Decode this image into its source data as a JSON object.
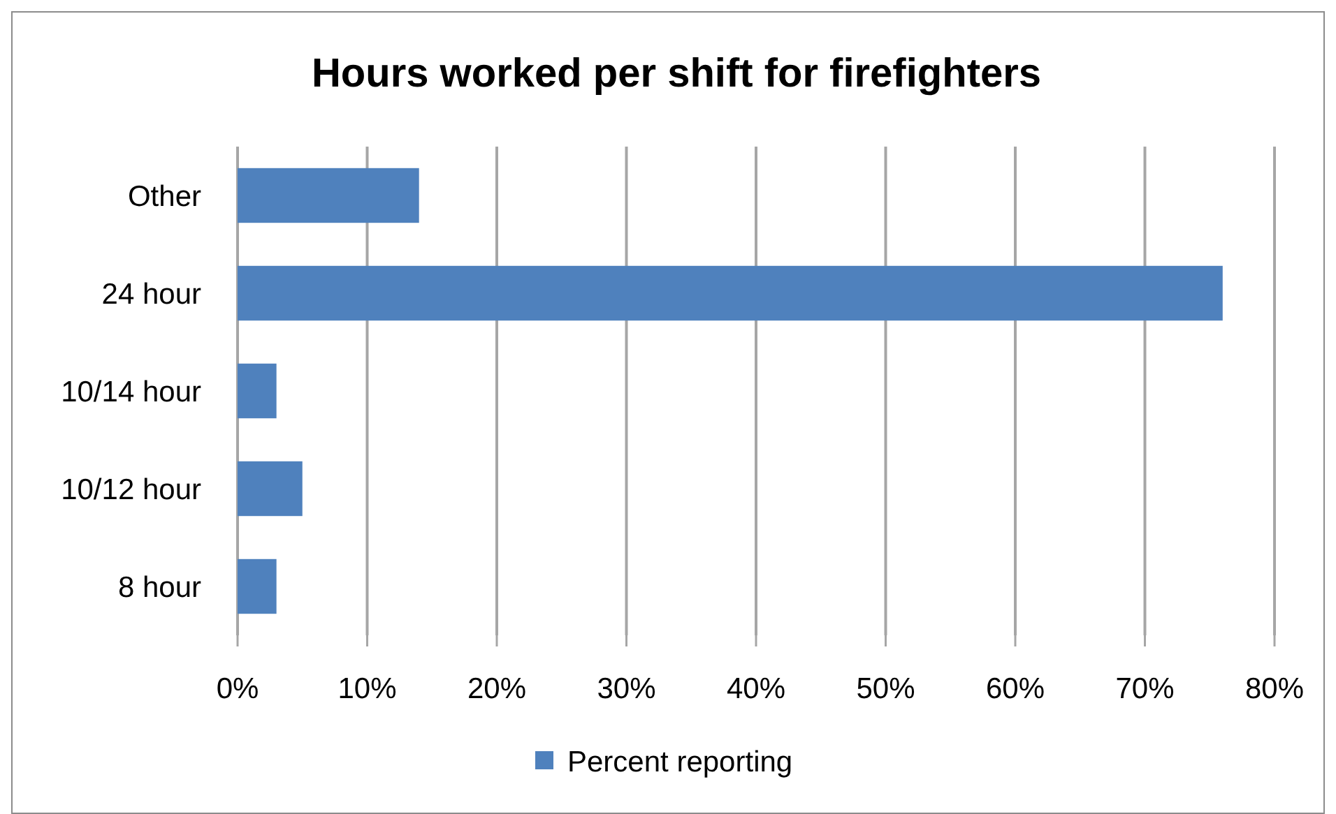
{
  "chart_data": {
    "type": "bar",
    "orientation": "horizontal",
    "title": "Hours worked per shift for firefighters",
    "categories": [
      "Other",
      "24 hour",
      "10/14 hour",
      "10/12 hour",
      "8 hour"
    ],
    "series": [
      {
        "name": "Percent reporting",
        "color": "#4f81bd",
        "values": [
          14,
          76,
          3,
          5,
          3
        ]
      }
    ],
    "xlim": [
      0,
      80
    ],
    "xticks": [
      {
        "value": 0,
        "label": "0%"
      },
      {
        "value": 10,
        "label": "10%"
      },
      {
        "value": 20,
        "label": "20%"
      },
      {
        "value": 30,
        "label": "30%"
      },
      {
        "value": 40,
        "label": "40%"
      },
      {
        "value": 50,
        "label": "50%"
      },
      {
        "value": 60,
        "label": "60%"
      },
      {
        "value": 70,
        "label": "70%"
      },
      {
        "value": 80,
        "label": "80%"
      }
    ],
    "grid": "x",
    "legend": "bottom"
  }
}
